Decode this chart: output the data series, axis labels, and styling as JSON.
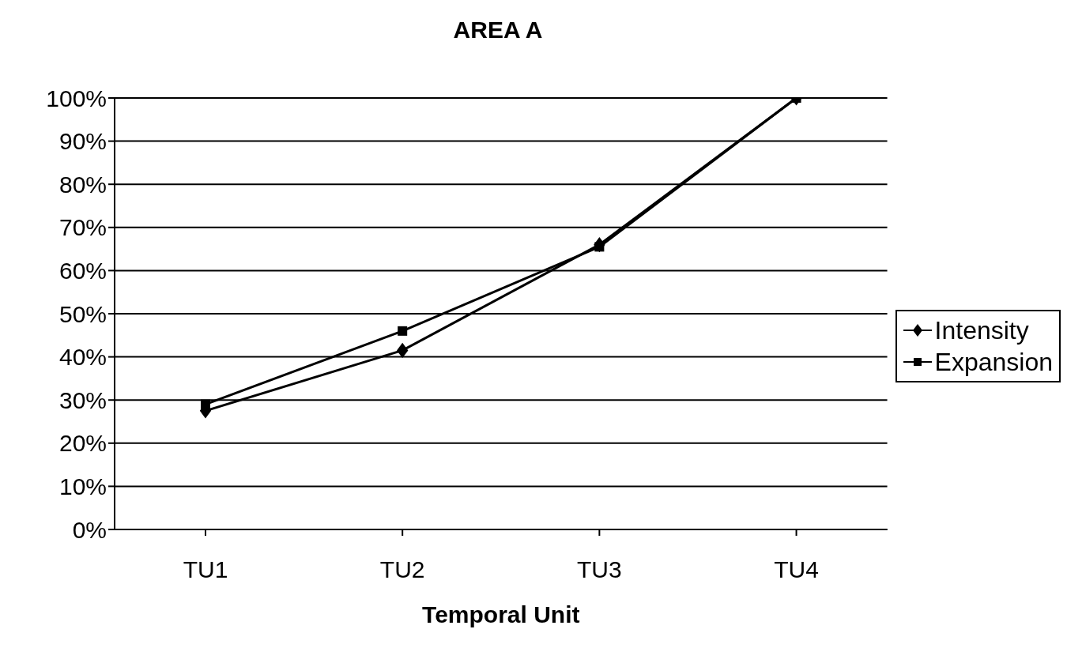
{
  "chart_data": {
    "type": "line",
    "title": "AREA A",
    "xlabel": "Temporal Unit",
    "categories": [
      "TU1",
      "TU2",
      "TU3",
      "TU4"
    ],
    "series": [
      {
        "name": "Intensity",
        "color": "#000000",
        "marker": "diamond",
        "values": [
          27.5,
          41.5,
          66,
          100
        ]
      },
      {
        "name": "Expansion",
        "color": "#000000",
        "marker": "square",
        "values": [
          29,
          46,
          65.5,
          100
        ]
      }
    ],
    "ylim": [
      0,
      100
    ],
    "yticks": [
      {
        "value": 0,
        "label": "0%"
      },
      {
        "value": 10,
        "label": "10%"
      },
      {
        "value": 20,
        "label": "20%"
      },
      {
        "value": 30,
        "label": "30%"
      },
      {
        "value": 40,
        "label": "40%"
      },
      {
        "value": 50,
        "label": "50%"
      },
      {
        "value": 60,
        "label": "60%"
      },
      {
        "value": 70,
        "label": "70%"
      },
      {
        "value": 80,
        "label": "80%"
      },
      {
        "value": 90,
        "label": "90%"
      },
      {
        "value": 100,
        "label": "100%"
      }
    ],
    "grid": "y",
    "legend": "right",
    "line_style": "solid"
  }
}
